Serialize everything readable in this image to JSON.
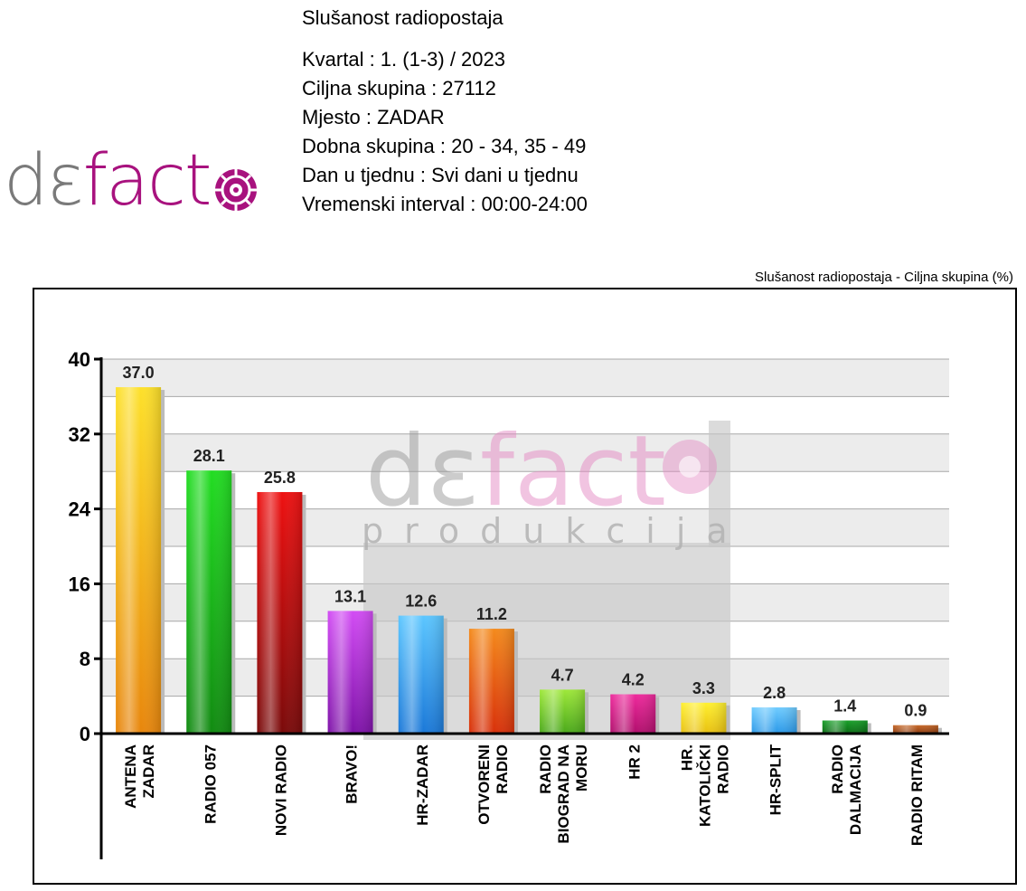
{
  "header": {
    "logo_text_gray": "dε",
    "logo_text_color": "fact",
    "report_title": "Slušanost radiopostaja",
    "info_lines": [
      "Kvartal :  1. (1-3) / 2023",
      "Ciljna skupina :  27112",
      "Mjesto : ZADAR",
      "Dobna skupina : 20 - 34, 35 - 49",
      "Dan u tjednu : Svi dani u tjednu",
      "Vremenski interval : 00:00-24:00"
    ]
  },
  "watermark": {
    "brand_gray": "dε",
    "brand_color": "fact",
    "tagline": "produkcija"
  },
  "chart_data": {
    "type": "bar",
    "title": "Slušanost radiopostaja - Ciljna skupina (%)",
    "xlabel": "",
    "ylabel": "",
    "ylim": [
      0,
      40
    ],
    "yticks": [
      0,
      8,
      16,
      24,
      32,
      40
    ],
    "grid": true,
    "categories": [
      "ANTENA\nZADAR",
      "RADIO 057",
      "NOVI RADIO",
      "BRAVO!",
      "HR-ZADAR",
      "OTVORENI\nRADIO",
      "RADIO\nBIOGRAD NA\nMORU",
      "HR 2",
      "HR.\nKATOLIČKI\nRADIO",
      "HR-SPLIT",
      "RADIO\nDALMACIJA",
      "RADIO RITAM"
    ],
    "values": [
      37.0,
      28.1,
      25.8,
      13.1,
      12.6,
      11.2,
      4.7,
      4.2,
      3.3,
      2.8,
      1.4,
      0.9
    ],
    "value_labels": [
      "37.0",
      "28.1",
      "25.8",
      "13.1",
      "12.6",
      "11.2",
      "4.7",
      "4.2",
      "3.3",
      "2.8",
      "1.4",
      "0.9"
    ],
    "bar_colors": [
      [
        "#fde02a",
        "#e8860c"
      ],
      [
        "#22dd22",
        "#118a11"
      ],
      [
        "#ee1111",
        "#7a0a0a"
      ],
      [
        "#d24cf4",
        "#7e12a8"
      ],
      [
        "#5cc6ff",
        "#1a78d8"
      ],
      [
        "#f48a1c",
        "#d8300a"
      ],
      [
        "#9ee83a",
        "#4aa81a"
      ],
      [
        "#ee2a9c",
        "#b00e6c"
      ],
      [
        "#fff030",
        "#e8c010"
      ],
      [
        "#70ccff",
        "#2a98e8"
      ],
      [
        "#1aa02a",
        "#0a6a14"
      ],
      [
        "#c86a2a",
        "#8a3a10"
      ]
    ]
  }
}
